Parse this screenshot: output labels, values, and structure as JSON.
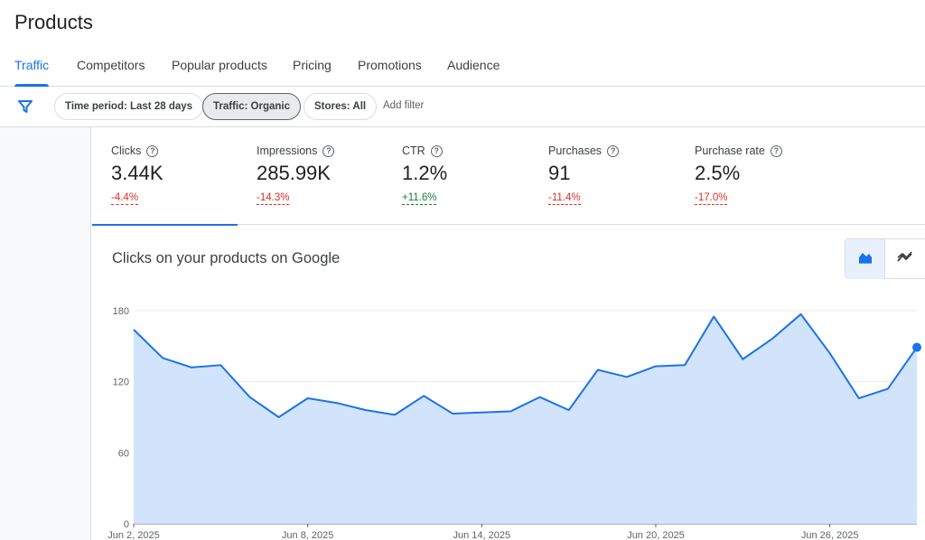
{
  "page": {
    "title": "Products"
  },
  "tabs": [
    {
      "label": "Traffic",
      "active": true
    },
    {
      "label": "Competitors"
    },
    {
      "label": "Popular products"
    },
    {
      "label": "Pricing"
    },
    {
      "label": "Promotions"
    },
    {
      "label": "Audience"
    }
  ],
  "filters": {
    "icon": "filter-icon",
    "chips": [
      {
        "label": "Time period: Last 28 days"
      },
      {
        "label": "Traffic: Organic",
        "selected": true
      },
      {
        "label": "Stores: All"
      }
    ],
    "add_filter": "Add filter"
  },
  "metrics": [
    {
      "label": "Clicks",
      "value": "3.44K",
      "change": "-4.4%",
      "trend": "negative",
      "active": true
    },
    {
      "label": "Impressions",
      "value": "285.99K",
      "change": "-14.3%",
      "trend": "negative"
    },
    {
      "label": "CTR",
      "value": "1.2%",
      "change": "+11.6%",
      "trend": "positive"
    },
    {
      "label": "Purchases",
      "value": "91",
      "change": "-11.4%",
      "trend": "negative"
    },
    {
      "label": "Purchase rate",
      "value": "2.5%",
      "change": "-17.0%",
      "trend": "negative"
    }
  ],
  "chart_section": {
    "title": "Clicks on your products on Google",
    "view_toggle": [
      {
        "icon": "area-chart-icon",
        "selected": true
      },
      {
        "icon": "line-chart-icon"
      }
    ]
  },
  "colors": {
    "accent": "#1a73e8",
    "area_fill": "#d2e3fc",
    "negative": "#d93025",
    "positive": "#188038"
  },
  "chart_data": {
    "type": "area",
    "x": [
      "Jun 2",
      "Jun 3",
      "Jun 4",
      "Jun 5",
      "Jun 6",
      "Jun 7",
      "Jun 8",
      "Jun 9",
      "Jun 10",
      "Jun 11",
      "Jun 12",
      "Jun 13",
      "Jun 14",
      "Jun 15",
      "Jun 16",
      "Jun 17",
      "Jun 18",
      "Jun 19",
      "Jun 20",
      "Jun 21",
      "Jun 22",
      "Jun 23",
      "Jun 24",
      "Jun 25",
      "Jun 26",
      "Jun 27",
      "Jun 28",
      "Jun 29"
    ],
    "series": [
      {
        "values": [
          164,
          140,
          132,
          134,
          107,
          90,
          106,
          102,
          96,
          92,
          108,
          93,
          94,
          95,
          107,
          96,
          130,
          124,
          133,
          134,
          175,
          139,
          156,
          177,
          144,
          106,
          114,
          149
        ]
      }
    ],
    "xticks": [
      "Jun 2, 2025",
      "Jun 8, 2025",
      "Jun 14, 2025",
      "Jun 20, 2025",
      "Jun 26, 2025"
    ],
    "yticks": [
      0,
      60,
      120,
      180
    ],
    "ylim": [
      0,
      180
    ],
    "grid": true
  }
}
